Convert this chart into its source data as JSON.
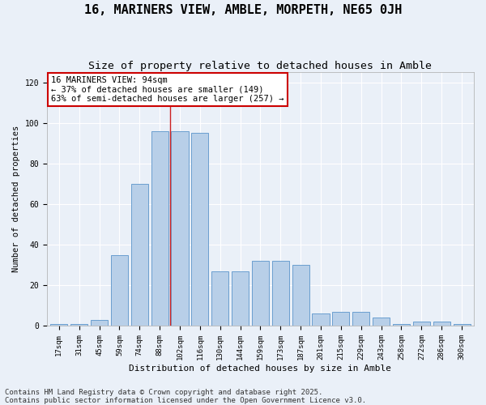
{
  "title": "16, MARINERS VIEW, AMBLE, MORPETH, NE65 0JH",
  "subtitle": "Size of property relative to detached houses in Amble",
  "xlabel": "Distribution of detached houses by size in Amble",
  "ylabel": "Number of detached properties",
  "bar_labels": [
    "17sqm",
    "31sqm",
    "45sqm",
    "59sqm",
    "74sqm",
    "88sqm",
    "102sqm",
    "116sqm",
    "130sqm",
    "144sqm",
    "159sqm",
    "173sqm",
    "187sqm",
    "201sqm",
    "215sqm",
    "229sqm",
    "243sqm",
    "258sqm",
    "272sqm",
    "286sqm",
    "300sqm"
  ],
  "bar_values": [
    1,
    1,
    3,
    35,
    70,
    96,
    96,
    95,
    27,
    27,
    32,
    32,
    30,
    6,
    7,
    7,
    4,
    1,
    2,
    2,
    1
  ],
  "bar_color": "#b8cfe8",
  "bar_edge_color": "#6a9fd0",
  "annotation_box_text": "16 MARINERS VIEW: 94sqm\n← 37% of detached houses are smaller (149)\n63% of semi-detached houses are larger (257) →",
  "vline_x": 5.5,
  "ylim": [
    0,
    125
  ],
  "yticks": [
    0,
    20,
    40,
    60,
    80,
    100,
    120
  ],
  "bg_color": "#eaf0f8",
  "grid_color": "#ffffff",
  "footer_line1": "Contains HM Land Registry data © Crown copyright and database right 2025.",
  "footer_line2": "Contains public sector information licensed under the Open Government Licence v3.0.",
  "title_fontsize": 11,
  "subtitle_fontsize": 9.5,
  "annotation_fontsize": 7.5,
  "footer_fontsize": 6.5,
  "ylabel_fontsize": 7.5,
  "xlabel_fontsize": 8,
  "tick_fontsize": 6.5
}
